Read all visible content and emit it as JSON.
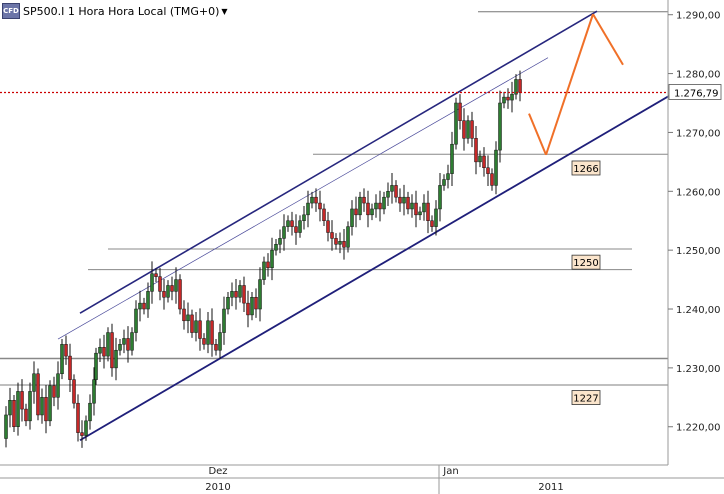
{
  "header": {
    "badge": "CFD",
    "title": "SP500.I 1 Hora Hora Local (TMG+0)",
    "dropdown_icon": "▼"
  },
  "chart_data": {
    "type": "candlestick",
    "symbol": "SP500.I",
    "timeframe": "1 Hora",
    "ylim": [
      1213.5,
      1292.5
    ],
    "y_ticks": [
      "1.220,00",
      "1.230,00",
      "1.240,00",
      "1.250,00",
      "1.260,00",
      "1.270,00",
      "1.280,00",
      "1.290,00"
    ],
    "y_tick_values": [
      1220,
      1230,
      1240,
      1250,
      1260,
      1270,
      1280,
      1290
    ],
    "x_labels_top": [
      "Dez",
      "Jan"
    ],
    "x_labels_bottom": [
      "2010",
      "2011"
    ],
    "current_price": {
      "label": "1.276,79",
      "value": 1276.79,
      "color": "#cc0000"
    },
    "level_labels": [
      {
        "label": "1266",
        "value": 1266
      },
      {
        "label": "1250",
        "value": 1250
      },
      {
        "label": "1227",
        "value": 1227
      }
    ],
    "horizontal_levels": [
      1290.5,
      1266.3,
      1250.2,
      1246.7,
      1231.6,
      1227.1
    ],
    "channel": {
      "upper": [
        [
          80,
          1239.3
        ],
        [
          597,
          1290.6
        ]
      ],
      "inner": [
        [
          58,
          1234.9
        ],
        [
          548,
          1282.7
        ]
      ],
      "lower": [
        [
          80,
          1217.7
        ],
        [
          672,
          1276.5
        ]
      ]
    },
    "projection": {
      "color": "#f07028",
      "points": [
        [
          529,
          1273.2
        ],
        [
          546,
          1266.2
        ],
        [
          593,
          1290.1
        ],
        [
          623,
          1281.5
        ]
      ]
    },
    "price_path": [
      [
        2,
        1218
      ],
      [
        6,
        1222
      ],
      [
        10,
        1224.5
      ],
      [
        14,
        1220
      ],
      [
        18,
        1226
      ],
      [
        22,
        1223
      ],
      [
        26,
        1221
      ],
      [
        30,
        1226
      ],
      [
        34,
        1229
      ],
      [
        38,
        1222
      ],
      [
        42,
        1225
      ],
      [
        46,
        1221
      ],
      [
        50,
        1227
      ],
      [
        54,
        1225
      ],
      [
        58,
        1229
      ],
      [
        62,
        1234
      ],
      [
        66,
        1232
      ],
      [
        70,
        1228
      ],
      [
        74,
        1224
      ],
      [
        78,
        1219
      ],
      [
        82,
        1218.5
      ],
      [
        86,
        1221
      ],
      [
        90,
        1224
      ],
      [
        94,
        1228
      ],
      [
        96,
        1232.5
      ],
      [
        100,
        1233.5
      ],
      [
        104,
        1232
      ],
      [
        108,
        1236
      ],
      [
        112,
        1230
      ],
      [
        116,
        1233
      ],
      [
        120,
        1234
      ],
      [
        124,
        1235
      ],
      [
        128,
        1233
      ],
      [
        132,
        1236
      ],
      [
        136,
        1240
      ],
      [
        140,
        1241
      ],
      [
        144,
        1240
      ],
      [
        148,
        1243
      ],
      [
        152,
        1246
      ],
      [
        156,
        1245.5
      ],
      [
        160,
        1243
      ],
      [
        164,
        1242
      ],
      [
        168,
        1244
      ],
      [
        172,
        1243
      ],
      [
        176,
        1245
      ],
      [
        180,
        1240
      ],
      [
        184,
        1238
      ],
      [
        188,
        1239
      ],
      [
        192,
        1236
      ],
      [
        196,
        1238
      ],
      [
        200,
        1235
      ],
      [
        204,
        1234
      ],
      [
        208,
        1238
      ],
      [
        212,
        1234
      ],
      [
        216,
        1233
      ],
      [
        220,
        1236
      ],
      [
        224,
        1240
      ],
      [
        228,
        1242
      ],
      [
        232,
        1243
      ],
      [
        236,
        1242
      ],
      [
        240,
        1244
      ],
      [
        244,
        1241
      ],
      [
        248,
        1239
      ],
      [
        252,
        1242
      ],
      [
        256,
        1240
      ],
      [
        260,
        1245
      ],
      [
        264,
        1248
      ],
      [
        268,
        1247
      ],
      [
        272,
        1250
      ],
      [
        276,
        1251
      ],
      [
        280,
        1252
      ],
      [
        284,
        1254
      ],
      [
        288,
        1255
      ],
      [
        292,
        1254
      ],
      [
        296,
        1253
      ],
      [
        300,
        1255
      ],
      [
        304,
        1256
      ],
      [
        308,
        1258
      ],
      [
        312,
        1259
      ],
      [
        316,
        1258
      ],
      [
        320,
        1257
      ],
      [
        324,
        1255
      ],
      [
        328,
        1253
      ],
      [
        332,
        1252
      ],
      [
        336,
        1251
      ],
      [
        340,
        1251.5
      ],
      [
        344,
        1250.5
      ],
      [
        348,
        1254
      ],
      [
        352,
        1257
      ],
      [
        356,
        1256
      ],
      [
        360,
        1259
      ],
      [
        364,
        1258
      ],
      [
        368,
        1256
      ],
      [
        372,
        1257
      ],
      [
        376,
        1258
      ],
      [
        380,
        1257
      ],
      [
        384,
        1259
      ],
      [
        388,
        1260
      ],
      [
        392,
        1261
      ],
      [
        396,
        1259
      ],
      [
        400,
        1258
      ],
      [
        404,
        1259
      ],
      [
        408,
        1257
      ],
      [
        412,
        1258
      ],
      [
        416,
        1256
      ],
      [
        420,
        1256.5
      ],
      [
        424,
        1258
      ],
      [
        428,
        1255
      ],
      [
        432,
        1254
      ],
      [
        436,
        1257
      ],
      [
        440,
        1261
      ],
      [
        444,
        1262
      ],
      [
        448,
        1263
      ],
      [
        452,
        1268
      ],
      [
        456,
        1275
      ],
      [
        460,
        1272
      ],
      [
        464,
        1269
      ],
      [
        468,
        1272
      ],
      [
        472,
        1269
      ],
      [
        476,
        1265
      ],
      [
        480,
        1266
      ],
      [
        484,
        1264
      ],
      [
        488,
        1263
      ],
      [
        492,
        1261
      ],
      [
        496,
        1267
      ],
      [
        500,
        1275
      ],
      [
        504,
        1276
      ],
      [
        508,
        1275.5
      ],
      [
        512,
        1276.5
      ],
      [
        516,
        1279
      ],
      [
        520,
        1276.8
      ]
    ]
  }
}
